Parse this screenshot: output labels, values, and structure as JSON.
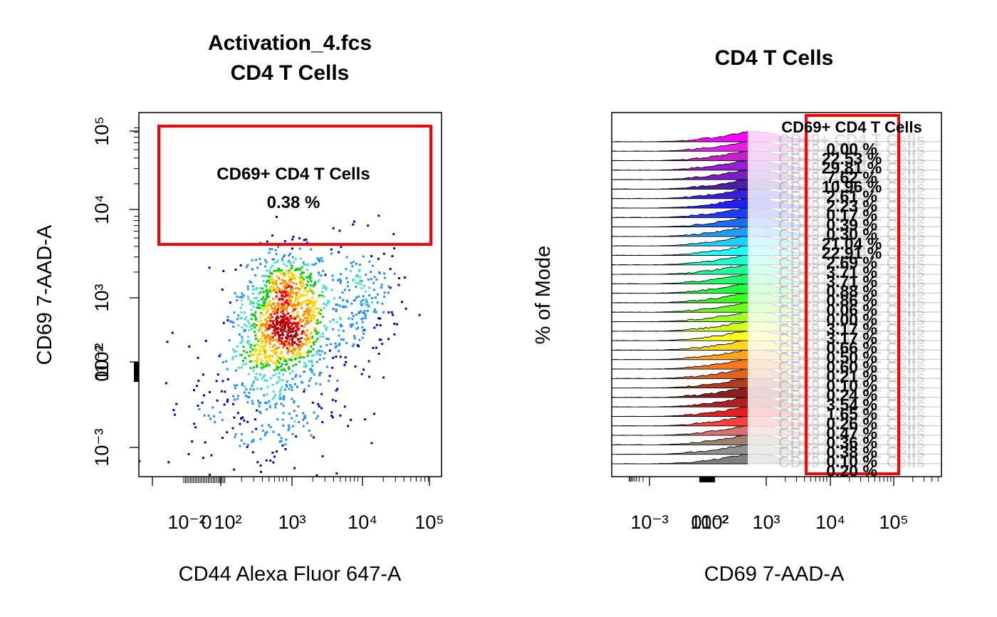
{
  "colors": {
    "gate": "#ff0000",
    "density": [
      "#0000cc",
      "#1e90ff",
      "#40e0d0",
      "#00cd00",
      "#ffd700",
      "#ff8c00",
      "#ff0000",
      "#aa0000"
    ]
  },
  "chart_data": [
    {
      "type": "scatter",
      "title_line1": "Activation_4.fcs",
      "title_line2": "CD4 T Cells",
      "xlabel": "CD44 Alexa Fluor 647-A",
      "ylabel": "CD69 7-AAD-A",
      "x_ticks": [
        "10⁻²",
        "0",
        "10²",
        "10³",
        "10⁴",
        "10⁵"
      ],
      "y_ticks": [
        "10⁻³",
        "0",
        "10⁻²",
        "10²",
        "10³",
        "10⁴",
        "10⁵"
      ],
      "gate": {
        "name": "CD69+ CD4 T Cells",
        "percent": "0.38 %"
      },
      "clusters": [
        {
          "x": 800,
          "y": 1100,
          "weight": 0.32
        },
        {
          "x": 850,
          "y": 450,
          "weight": 0.22
        },
        {
          "x": 500,
          "y": 250,
          "weight": 0.18
        },
        {
          "x": 10000,
          "y": 900,
          "weight": 0.12
        },
        {
          "x": 400,
          "y": 60,
          "weight": 0.16
        }
      ]
    },
    {
      "type": "area",
      "title": "CD4 T Cells",
      "xlabel": "CD69 7-AAD-A",
      "ylabel": "% of Mode",
      "x_ticks": [
        "10⁻³",
        "0",
        "10⁻²",
        "10²",
        "10³",
        "10⁴",
        "10⁵"
      ],
      "gate": {
        "name": "CD69+ CD4 T Cells"
      },
      "series": [
        {
          "color": "#ff00ff",
          "percent": "0.00 %"
        },
        {
          "color": "#e81ee8",
          "percent": "22.53 %"
        },
        {
          "color": "#c81ec8",
          "percent": "29.81 %"
        },
        {
          "color": "#9b1ed6",
          "percent": "7.62 %"
        },
        {
          "color": "#7a1ec8",
          "percent": "10.96 %"
        },
        {
          "color": "#4b1ea8",
          "percent": "2.61 %"
        },
        {
          "color": "#3a1ee0",
          "percent": "2.23 %"
        },
        {
          "color": "#1e1eff",
          "percent": "0.17 %"
        },
        {
          "color": "#1e3cff",
          "percent": "0.39 %"
        },
        {
          "color": "#1e6cff",
          "percent": "0.30 %"
        },
        {
          "color": "#1e9cff",
          "percent": "21.04 %"
        },
        {
          "color": "#1ecfff",
          "percent": "22.91 %"
        },
        {
          "color": "#1effff",
          "percent": "2.69 %"
        },
        {
          "color": "#1effd0",
          "percent": "3.71 %"
        },
        {
          "color": "#1eff9c",
          "percent": "3.71 %"
        },
        {
          "color": "#1eff6c",
          "percent": "0.88 %"
        },
        {
          "color": "#1eff3c",
          "percent": "0.86 %"
        },
        {
          "color": "#3cff1e",
          "percent": "0.06 %"
        },
        {
          "color": "#6cff1e",
          "percent": "0.00 %"
        },
        {
          "color": "#9cff1e",
          "percent": "3.17 %"
        },
        {
          "color": "#cfff1e",
          "percent": "3.17 %"
        },
        {
          "color": "#ffff1e",
          "percent": "0.66 %"
        },
        {
          "color": "#ffd71e",
          "percent": "0.50 %"
        },
        {
          "color": "#ffa51e",
          "percent": "0.60 %"
        },
        {
          "color": "#ff781e",
          "percent": "0.21 %"
        },
        {
          "color": "#e0641e",
          "percent": "0.10 %"
        },
        {
          "color": "#b43c1e",
          "percent": "0.24 %"
        },
        {
          "color": "#8b1e1e",
          "percent": "3.54 %"
        },
        {
          "color": "#b41e1e",
          "percent": "1.65 %"
        },
        {
          "color": "#e61e1e",
          "percent": "0.26 %"
        },
        {
          "color": "#ff4040",
          "percent": "0.47 %"
        },
        {
          "color": "#e07070",
          "percent": "0.36 %"
        },
        {
          "color": "#a08070",
          "percent": "0.38 %"
        },
        {
          "color": "#909090",
          "percent": "0.10 %"
        },
        {
          "color": "#808080",
          "percent": "0.20 %"
        }
      ]
    }
  ]
}
